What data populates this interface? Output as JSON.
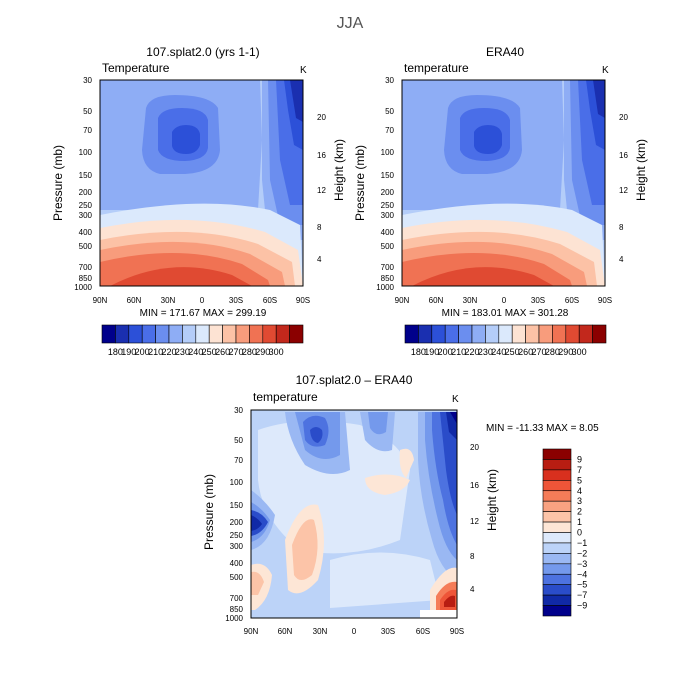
{
  "page_title": "JJA",
  "chart_data": [
    {
      "id": "model",
      "type": "contour",
      "title": "107.splat2.0 (yrs 1-1)",
      "variable": "Temperature",
      "units": "K",
      "ylabel": "Pressure (mb)",
      "ylabel_right": "Height (km)",
      "pressure_ticks": [
        "30",
        "50",
        "70",
        "100",
        "150",
        "200",
        "250",
        "300",
        "400",
        "500",
        "700",
        "850",
        "1000"
      ],
      "height_ticks": [
        "20",
        "16",
        "12",
        "8",
        "4"
      ],
      "lat_ticks": [
        "90N",
        "60N",
        "30N",
        "0",
        "30S",
        "60S",
        "90S"
      ],
      "stats": "MIN = 171.67   MAX = 299.19",
      "colorbar_labels": [
        "180",
        "190",
        "200",
        "210",
        "220",
        "230",
        "240",
        "250",
        "260",
        "270",
        "280",
        "290",
        "300"
      ],
      "colorbar_colors": [
        "#00008b",
        "#1a2fb0",
        "#2c50d8",
        "#4a6ee8",
        "#6b8eef",
        "#8eadf5",
        "#b4cdf9",
        "#dbe9fc",
        "#fde3d3",
        "#fcc2a6",
        "#f89c7c",
        "#f07253",
        "#e04a32",
        "#c2281c",
        "#8b0000"
      ]
    },
    {
      "id": "obs",
      "type": "contour",
      "title": "ERA40",
      "variable": "temperature",
      "units": "K",
      "ylabel": "Pressure (mb)",
      "ylabel_right": "Height (km)",
      "pressure_ticks": [
        "30",
        "50",
        "70",
        "100",
        "150",
        "200",
        "250",
        "300",
        "400",
        "500",
        "700",
        "850",
        "1000"
      ],
      "height_ticks": [
        "20",
        "16",
        "12",
        "8",
        "4"
      ],
      "lat_ticks": [
        "90N",
        "60N",
        "30N",
        "0",
        "30S",
        "60S",
        "90S"
      ],
      "stats": "MIN = 183.01   MAX = 301.28",
      "colorbar_labels": [
        "180",
        "190",
        "200",
        "210",
        "220",
        "230",
        "240",
        "250",
        "260",
        "270",
        "280",
        "290",
        "300"
      ],
      "colorbar_colors": [
        "#00008b",
        "#1a2fb0",
        "#2c50d8",
        "#4a6ee8",
        "#6b8eef",
        "#8eadf5",
        "#b4cdf9",
        "#dbe9fc",
        "#fde3d3",
        "#fcc2a6",
        "#f89c7c",
        "#f07253",
        "#e04a32",
        "#c2281c",
        "#8b0000"
      ]
    },
    {
      "id": "diff",
      "type": "contour",
      "title": "107.splat2.0 – ERA40",
      "variable": "temperature",
      "units": "K",
      "ylabel": "Pressure (mb)",
      "ylabel_right": "Height (km)",
      "pressure_ticks": [
        "30",
        "50",
        "70",
        "100",
        "150",
        "200",
        "250",
        "300",
        "400",
        "500",
        "700",
        "850",
        "1000"
      ],
      "height_ticks": [
        "20",
        "16",
        "12",
        "8",
        "4"
      ],
      "lat_ticks": [
        "90N",
        "60N",
        "30N",
        "0",
        "30S",
        "60S",
        "90S"
      ],
      "stats": "MIN = -11.33   MAX =    8.05",
      "colorbar_labels": [
        "9",
        "7",
        "5",
        "4",
        "3",
        "2",
        "1",
        "0",
        "−1",
        "−2",
        "−3",
        "−4",
        "−5",
        "−7",
        "−9"
      ],
      "colorbar_colors": [
        "#8b0000",
        "#b81d12",
        "#d9301e",
        "#ee5538",
        "#f57c58",
        "#f9a281",
        "#fcc4a8",
        "#fde6d6",
        "#dde9fb",
        "#bcd3f8",
        "#9ab8f3",
        "#7499ec",
        "#4d72e0",
        "#2a4cc9",
        "#1029a6",
        "#00008b"
      ]
    }
  ]
}
